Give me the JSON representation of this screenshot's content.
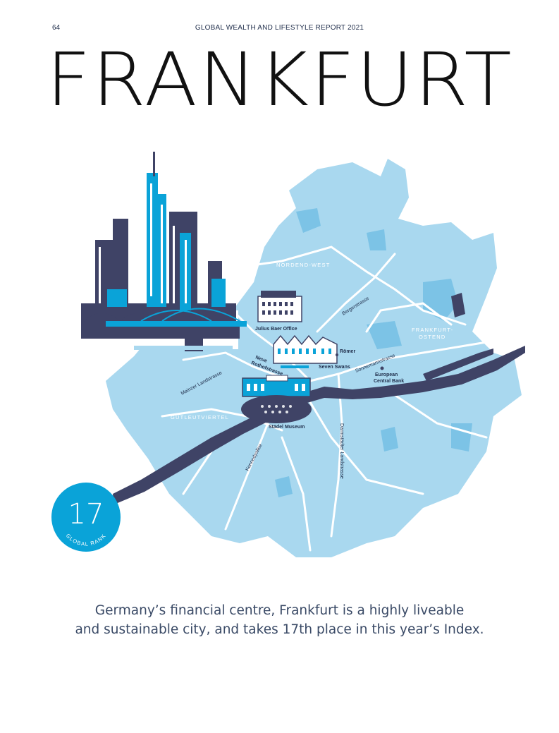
{
  "header": {
    "page_number": "64",
    "report_title": "GLOBAL WEALTH AND LIFESTYLE REPORT 2021"
  },
  "title": "FRANKFURT",
  "map": {
    "districts": [
      "NORDEND-WEST",
      "FRANKFURT-",
      "OSTEND",
      "GUTLEUTVIERTEL"
    ],
    "streets": [
      "Bergerstrasse",
      "Sonnemannstrasse",
      "Mainzer Landstrasse",
      "Neue",
      "Rothofstrasse",
      "Kennedyallee",
      "Darmstädter Landstrasse"
    ],
    "landmarks": [
      "Julius Baer Office",
      "Römer",
      "Seven Swans",
      "European",
      "Central Bank",
      "Städel Museum"
    ],
    "colors": {
      "land": "#a9d8ef",
      "land_dark": "#7cc3e6",
      "river": "#3f4366",
      "roads": "#ffffff",
      "accent": "#0aa3d8"
    }
  },
  "rank": {
    "value": "17",
    "caption": "GLOBAL RANK"
  },
  "description": {
    "line1": "Germany’s financial centre, Frankfurt is a highly liveable",
    "line2": "and sustainable city, and takes 17th place in this year’s Index."
  }
}
